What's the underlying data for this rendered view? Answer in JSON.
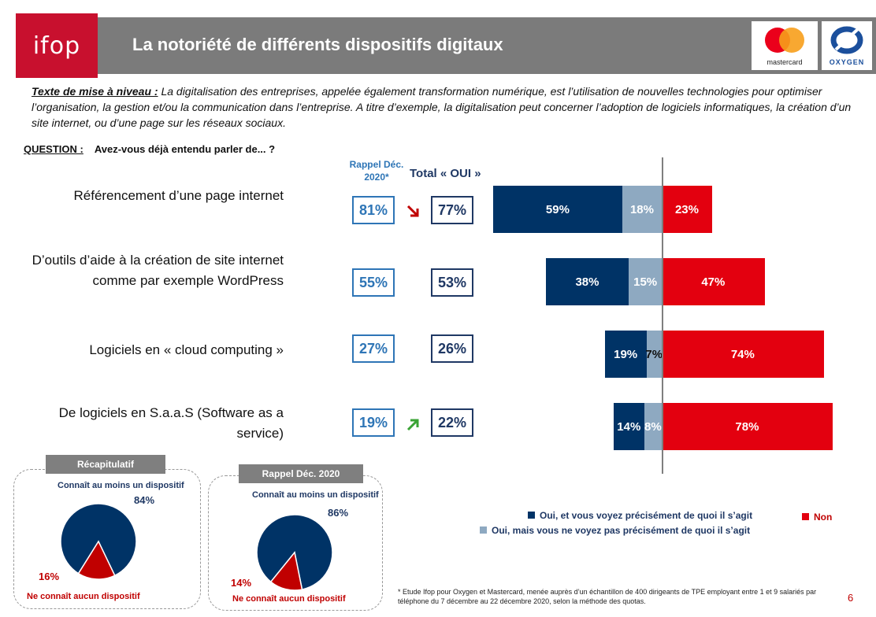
{
  "header": {
    "logo_text": "ifop",
    "title": "La notoriété de différents dispositifs digitaux",
    "partner1": "mastercard",
    "partner2": "OXYGEN"
  },
  "intro": {
    "label": "Texte de mise à niveau :",
    "text": " La digitalisation des entreprises, appelée également transformation numérique, est l’utilisation de nouvelles technologies pour optimiser l’organisation, la gestion et/ou la communication dans l’entreprise. A titre d’exemple, la digitalisation peut concerner l’adoption de logiciels informatiques, la création d’un site internet, ou d’une page sur les réseaux sociaux."
  },
  "question": {
    "label": "QUESTION :",
    "text": "Avez-vous déjà entendu parler de... ?"
  },
  "columns": {
    "rappel": "Rappel Déc. 2020*",
    "total": "Total « OUI »"
  },
  "colors": {
    "oui_precis": "#003366",
    "oui_vague": "#8ea9c1",
    "non": "#e3000f",
    "rappel": "#2e75b6",
    "trend_down": "#c00000",
    "trend_up": "#3aa335"
  },
  "chart_data": {
    "type": "bar",
    "stacked": true,
    "orientation": "horizontal",
    "categories": [
      "Référencement d’une page internet",
      "D’outils d’aide à la création de site internet comme par exemple WordPress",
      "Logiciels en « cloud computing »",
      "De logiciels en S.a.a.S (Software as a service)"
    ],
    "series": [
      {
        "name": "Oui, et vous voyez précisément de quoi il s’agit",
        "values": [
          59,
          38,
          19,
          14
        ],
        "labels": [
          "59%",
          "38%",
          "19%",
          "14%"
        ]
      },
      {
        "name": "Oui, mais vous ne voyez pas précisément de quoi il s’agit",
        "values": [
          18,
          15,
          7,
          8
        ],
        "labels": [
          "18%",
          "15%",
          "7%",
          "8%"
        ]
      },
      {
        "name": "Non",
        "values": [
          23,
          47,
          74,
          78
        ],
        "labels": [
          "23%",
          "47%",
          "74%",
          "78%"
        ]
      }
    ],
    "rappel_dec_2020": [
      "81%",
      "55%",
      "27%",
      "19%"
    ],
    "total_oui": [
      "77%",
      "53%",
      "26%",
      "22%"
    ],
    "trends": [
      "down",
      "",
      "",
      "up"
    ],
    "legend": {
      "oui_precis": "Oui, et vous voyez précisément de quoi il s’agit",
      "oui_vague": "Oui, mais vous ne voyez pas précisément de quoi il s’agit",
      "non": "Non"
    },
    "pies": [
      {
        "tag": "Récapitulatif",
        "yes_label": "Connaît au moins un dispositif",
        "yes_value": 84,
        "yes_text": "84%",
        "no_label": "Ne connaît aucun dispositif",
        "no_value": 16,
        "no_text": "16%"
      },
      {
        "tag": "Rappel Déc. 2020",
        "yes_label": "Connaît au moins un dispositif",
        "yes_value": 86,
        "yes_text": "86%",
        "no_label": "Ne connaît aucun dispositif",
        "no_value": 14,
        "no_text": "14%"
      }
    ]
  },
  "footnote": "* Etude Ifop pour Oxygen et Mastercard, menée auprès d’un échantillon de 400 dirigeants de TPE employant entre 1 et 9 salariés par téléphone du 7 décembre au 22 décembre 2020, selon la méthode des quotas.",
  "page_number": "6"
}
